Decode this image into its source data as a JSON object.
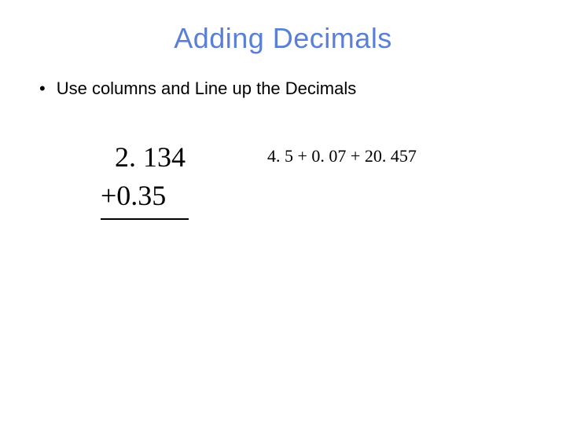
{
  "title": {
    "text": "Adding Decimals",
    "color": "#5a7fd6",
    "fontsize": 36
  },
  "bullet": {
    "marker": "•",
    "text": "Use columns and Line up the Decimals",
    "fontsize": 22,
    "color": "#000000"
  },
  "column_addition": {
    "line1": "  2. 134",
    "line2": "+0.35",
    "rule_color": "#000000",
    "fontsize": 36,
    "font_family": "Times New Roman"
  },
  "expression": {
    "text": "4. 5 + 0. 07 + 20. 457",
    "fontsize": 22,
    "font_family": "Times New Roman",
    "color": "#000000"
  },
  "background_color": "#ffffff"
}
